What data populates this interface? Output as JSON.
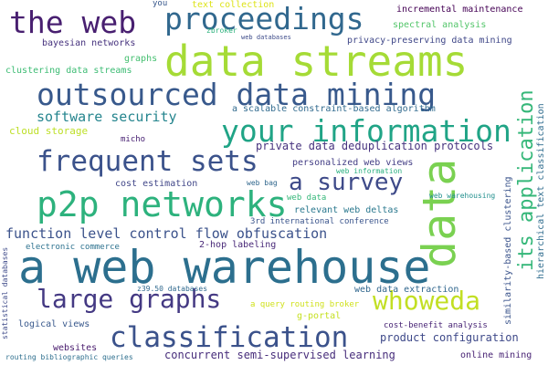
{
  "words": [
    {
      "text": "a web warehouse",
      "color": "#2c6f8e"
    },
    {
      "text": "data streams",
      "color": "#a5db36"
    },
    {
      "text": "outsourced data mining",
      "color": "#38598c"
    },
    {
      "text": "proceedings",
      "color": "#31688e"
    },
    {
      "text": "the web",
      "color": "#481f70"
    },
    {
      "text": "your information",
      "color": "#20a486"
    },
    {
      "text": "frequent sets",
      "color": "#3b528b"
    },
    {
      "text": "p2p networks",
      "color": "#2db27d"
    },
    {
      "text": "data",
      "color": "#7ad151"
    },
    {
      "text": "its application",
      "color": "#35b779"
    },
    {
      "text": "a survey",
      "color": "#3e4a89"
    },
    {
      "text": "large graphs",
      "color": "#443983"
    },
    {
      "text": "whoweda",
      "color": "#c2df23"
    },
    {
      "text": "classification",
      "color": "#3b528b"
    },
    {
      "text": "software security",
      "color": "#25858e"
    },
    {
      "text": "function level control flow obfuscation",
      "color": "#3b528b"
    },
    {
      "text": "private data deduplication protocols",
      "color": "#46327e"
    },
    {
      "text": "bayesian networks",
      "color": "#46327e"
    },
    {
      "text": "graphs",
      "color": "#44bf70"
    },
    {
      "text": "clustering data streams",
      "color": "#3dbc74"
    },
    {
      "text": "cloud storage",
      "color": "#bddf26"
    },
    {
      "text": "micho",
      "color": "#482173"
    },
    {
      "text": "cost estimation",
      "color": "#404688"
    },
    {
      "text": "personalized web views",
      "color": "#433e85"
    },
    {
      "text": "web bag",
      "color": "#31688e"
    },
    {
      "text": "web data",
      "color": "#35b779"
    },
    {
      "text": "relevant web deltas",
      "color": "#2a788e"
    },
    {
      "text": "3rd international conference",
      "color": "#3a548c"
    },
    {
      "text": "2-hop labeling",
      "color": "#482878"
    },
    {
      "text": "electronic commerce",
      "color": "#2c718e"
    },
    {
      "text": "z39.50 databases",
      "color": "#30698e"
    },
    {
      "text": "web data extraction",
      "color": "#31678e"
    },
    {
      "text": "a query routing broker",
      "color": "#d0e11c"
    },
    {
      "text": "g-portal",
      "color": "#c5e021"
    },
    {
      "text": "logical views",
      "color": "#38588c"
    },
    {
      "text": "cost-benefit analysis",
      "color": "#482475"
    },
    {
      "text": "product configuration",
      "color": "#3e4989"
    },
    {
      "text": "concurrent semi-supervised learning",
      "color": "#472d7b"
    },
    {
      "text": "websites",
      "color": "#481b6d"
    },
    {
      "text": "routing bibliographic queries",
      "color": "#2e6f8e"
    },
    {
      "text": "online mining",
      "color": "#482374"
    },
    {
      "text": "statistical databases",
      "color": "#3e4a89"
    },
    {
      "text": "similarity-based clustering",
      "color": "#3a538b"
    },
    {
      "text": "hierarchical text classification",
      "color": "#2f6c8e"
    },
    {
      "text": "web warehousing",
      "color": "#218f8d"
    },
    {
      "text": "web information",
      "color": "#2ab07f"
    },
    {
      "text": "a scalable constraint-based algorithm",
      "color": "#306a8e"
    },
    {
      "text": "incremental maintenance",
      "color": "#440154"
    },
    {
      "text": "spectral analysis",
      "color": "#52c569"
    },
    {
      "text": "privacy-preserving data mining",
      "color": "#3f4788"
    },
    {
      "text": "text collection",
      "color": "#dde318"
    },
    {
      "text": "you",
      "color": "#38588c"
    },
    {
      "text": "zbroker",
      "color": "#2db27d"
    },
    {
      "text": "web databases",
      "color": "#3e4c8a"
    }
  ]
}
